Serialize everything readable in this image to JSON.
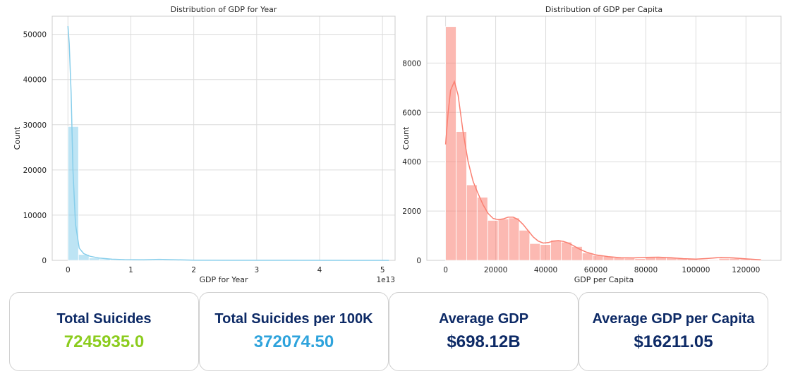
{
  "charts": [
    {
      "id": "gdp-year",
      "chart_data": {
        "type": "bar",
        "title": "Distribution of GDP for Year",
        "xlabel": "GDP for Year",
        "ylabel": "Count",
        "x_offset_label": "1e13",
        "xlim": [
          -0.25,
          5.2
        ],
        "ylim": [
          0,
          54000
        ],
        "xticks": [
          0,
          1,
          2,
          3,
          4,
          5
        ],
        "xtick_labels": [
          "0",
          "1",
          "2",
          "3",
          "4",
          "5"
        ],
        "yticks": [
          0,
          10000,
          20000,
          30000,
          40000,
          50000
        ],
        "ytick_labels": [
          "0",
          "10000",
          "20000",
          "30000",
          "40000",
          "50000"
        ],
        "bin_width": 0.168,
        "bin_starts": [
          0,
          0.168,
          0.336,
          0.504,
          0.672,
          0.84,
          1.008,
          1.176,
          1.344,
          1.512,
          1.68,
          1.848,
          2.016,
          2.184,
          2.352,
          2.52,
          2.688,
          2.856,
          3.024,
          3.192,
          3.36,
          3.528,
          3.696,
          3.864,
          4.032,
          4.2,
          4.368,
          4.536,
          4.704,
          4.872
        ],
        "values": [
          29600,
          1300,
          520,
          300,
          150,
          110,
          80,
          60,
          120,
          260,
          60,
          40,
          30,
          20,
          15,
          10,
          10,
          10,
          5,
          5,
          5,
          5,
          5,
          5,
          5,
          5,
          5,
          5,
          5,
          5
        ],
        "kde": [
          [
            0,
            51800
          ],
          [
            0.02,
            48000
          ],
          [
            0.05,
            37000
          ],
          [
            0.08,
            20000
          ],
          [
            0.12,
            8000
          ],
          [
            0.18,
            2700
          ],
          [
            0.25,
            1500
          ],
          [
            0.35,
            900
          ],
          [
            0.5,
            500
          ],
          [
            0.7,
            250
          ],
          [
            0.9,
            150
          ],
          [
            1.2,
            120
          ],
          [
            1.45,
            220
          ],
          [
            1.6,
            150
          ],
          [
            2.0,
            50
          ],
          [
            2.6,
            20
          ],
          [
            3.5,
            10
          ],
          [
            5.1,
            5
          ]
        ],
        "bar_color": "#87ceeb",
        "line_color": "#87ceeb",
        "grid": true
      }
    },
    {
      "id": "gdp-capita",
      "chart_data": {
        "type": "bar",
        "title": "Distribution of GDP per Capita",
        "xlabel": "GDP per Capita",
        "ylabel": "Count",
        "xlim": [
          -7500,
          134000
        ],
        "ylim": [
          0,
          9900
        ],
        "xticks": [
          0,
          20000,
          40000,
          60000,
          80000,
          100000,
          120000
        ],
        "xtick_labels": [
          "0",
          "20000",
          "40000",
          "60000",
          "80000",
          "100000",
          "120000"
        ],
        "yticks": [
          0,
          2000,
          4000,
          6000,
          8000
        ],
        "ytick_labels": [
          "0",
          "2000",
          "4000",
          "6000",
          "8000"
        ],
        "bin_width": 4200,
        "bin_starts": [
          0,
          4200,
          8400,
          12600,
          16800,
          21000,
          25200,
          29400,
          33600,
          37800,
          42000,
          46200,
          50400,
          54600,
          58800,
          63000,
          67200,
          71400,
          75600,
          79800,
          84000,
          88200,
          92400,
          96600,
          100800,
          105000,
          109200,
          113400,
          117600,
          121800
        ],
        "values": [
          9480,
          5220,
          3060,
          2560,
          1620,
          1680,
          1720,
          1220,
          680,
          640,
          820,
          740,
          560,
          300,
          200,
          160,
          110,
          90,
          70,
          140,
          120,
          110,
          80,
          60,
          40,
          30,
          80,
          80,
          60,
          50
        ],
        "kde": [
          [
            0,
            4700
          ],
          [
            1000,
            6000
          ],
          [
            2000,
            6900
          ],
          [
            3500,
            7250
          ],
          [
            5000,
            6700
          ],
          [
            7000,
            5200
          ],
          [
            9000,
            4000
          ],
          [
            11000,
            3200
          ],
          [
            13000,
            2700
          ],
          [
            15000,
            2250
          ],
          [
            17000,
            1900
          ],
          [
            19000,
            1700
          ],
          [
            21000,
            1650
          ],
          [
            23000,
            1680
          ],
          [
            25000,
            1750
          ],
          [
            27000,
            1750
          ],
          [
            29000,
            1650
          ],
          [
            31000,
            1450
          ],
          [
            33000,
            1200
          ],
          [
            35000,
            950
          ],
          [
            37000,
            780
          ],
          [
            39000,
            700
          ],
          [
            41000,
            720
          ],
          [
            43000,
            780
          ],
          [
            45000,
            800
          ],
          [
            47000,
            770
          ],
          [
            49000,
            700
          ],
          [
            51000,
            600
          ],
          [
            53000,
            480
          ],
          [
            56000,
            340
          ],
          [
            60000,
            220
          ],
          [
            65000,
            150
          ],
          [
            70000,
            110
          ],
          [
            75000,
            100
          ],
          [
            80000,
            120
          ],
          [
            85000,
            130
          ],
          [
            90000,
            110
          ],
          [
            95000,
            70
          ],
          [
            100000,
            50
          ],
          [
            105000,
            80
          ],
          [
            110000,
            120
          ],
          [
            115000,
            100
          ],
          [
            120000,
            60
          ],
          [
            126000,
            20
          ]
        ],
        "bar_color": "#fa8072",
        "line_color": "#fa8072",
        "grid": true
      }
    }
  ],
  "cards": {
    "total_suicides": {
      "title": "Total Suicides",
      "value": "7245935.0",
      "color": "#8ccc1e"
    },
    "suicides_per_100k": {
      "title": "Total Suicides per 100K",
      "value": "372074.50",
      "color": "#2ea3dc"
    },
    "avg_gdp": {
      "title": "Average GDP",
      "value": "$698.12B",
      "color": "#0d2a66"
    },
    "avg_gdp_capita": {
      "title": "Average GDP per Capita",
      "value": "$16211.05",
      "color": "#0d2a66"
    }
  }
}
